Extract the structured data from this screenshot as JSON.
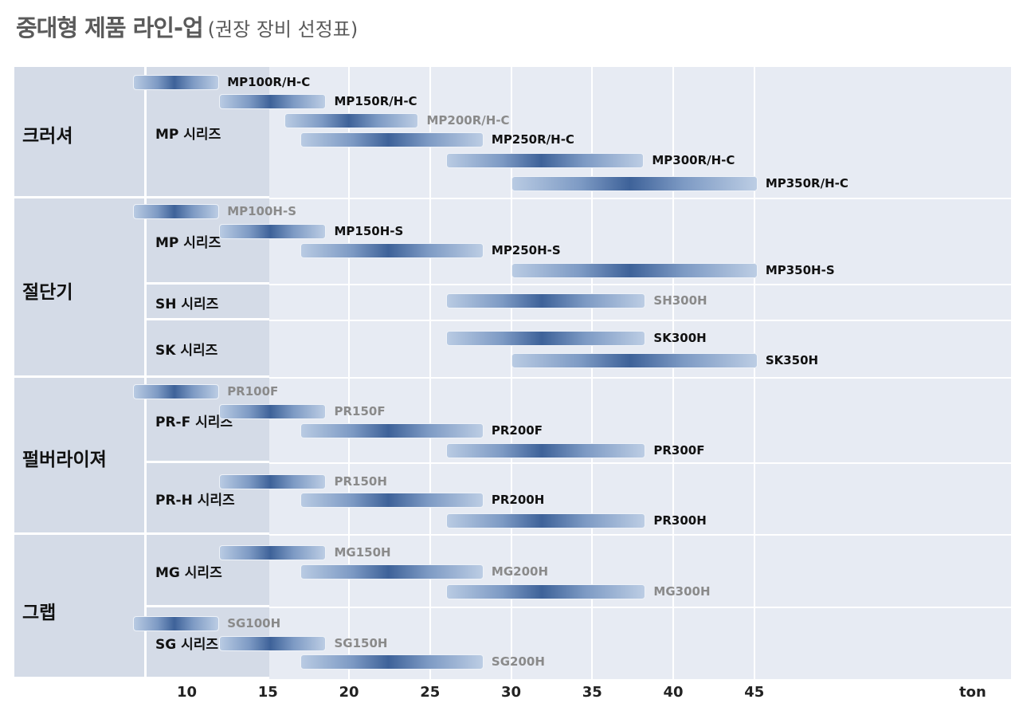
{
  "title": "중대형 제품 라인-업",
  "subtitle": "(권장 장비 선정표)",
  "unit": "ton",
  "chart_data": {
    "type": "range-bar",
    "x_ticks": [
      10,
      15,
      20,
      25,
      30,
      35,
      40,
      45
    ],
    "xlim": [
      5,
      51
    ],
    "x_unit": "ton",
    "grid": true,
    "categories": [
      {
        "name": "크러셔",
        "series": [
          {
            "name": "MP 시리즈",
            "models": [
              {
                "label": "MP100R/H-C",
                "min": 6.7,
                "max": 12,
                "highlight": true
              },
              {
                "label": "MP150R/H-C",
                "min": 12,
                "max": 18.6,
                "highlight": true
              },
              {
                "label": "MP200R/H-C",
                "min": 16,
                "max": 24.3,
                "highlight": false
              },
              {
                "label": "MP250R/H-C",
                "min": 17,
                "max": 28.3,
                "highlight": true
              },
              {
                "label": "MP300R/H-C",
                "min": 26,
                "max": 38.2,
                "highlight": true
              },
              {
                "label": "MP350R/H-C",
                "min": 30,
                "max": 45.2,
                "highlight": true
              }
            ]
          }
        ]
      },
      {
        "name": "절단기",
        "series": [
          {
            "name": "MP 시리즈",
            "models": [
              {
                "label": "MP100H-S",
                "min": 6.7,
                "max": 12,
                "highlight": false
              },
              {
                "label": "MP150H-S",
                "min": 12,
                "max": 18.6,
                "highlight": true
              },
              {
                "label": "MP250H-S",
                "min": 17,
                "max": 28.3,
                "highlight": true
              },
              {
                "label": "MP350H-S",
                "min": 30,
                "max": 45.2,
                "highlight": true
              }
            ]
          },
          {
            "name": "SH 시리즈",
            "models": [
              {
                "label": "SH300H",
                "min": 26,
                "max": 38.3,
                "highlight": false
              }
            ]
          },
          {
            "name": "SK 시리즈",
            "models": [
              {
                "label": "SK300H",
                "min": 26,
                "max": 38.3,
                "highlight": true
              },
              {
                "label": "SK350H",
                "min": 30,
                "max": 45.2,
                "highlight": true
              }
            ]
          }
        ]
      },
      {
        "name": "펄버라이져",
        "series": [
          {
            "name": "PR-F 시리즈",
            "models": [
              {
                "label": "PR100F",
                "min": 6.7,
                "max": 12,
                "highlight": false
              },
              {
                "label": "PR150F",
                "min": 12,
                "max": 18.6,
                "highlight": false
              },
              {
                "label": "PR200F",
                "min": 17,
                "max": 28.3,
                "highlight": true
              },
              {
                "label": "PR300F",
                "min": 26,
                "max": 38.3,
                "highlight": true
              }
            ]
          },
          {
            "name": "PR-H 시리즈",
            "models": [
              {
                "label": "PR150H",
                "min": 12,
                "max": 18.6,
                "highlight": false
              },
              {
                "label": "PR200H",
                "min": 17,
                "max": 28.3,
                "highlight": true
              },
              {
                "label": "PR300H",
                "min": 26,
                "max": 38.3,
                "highlight": true
              }
            ]
          }
        ]
      },
      {
        "name": "그랩",
        "series": [
          {
            "name": "MG 시리즈",
            "models": [
              {
                "label": "MG150H",
                "min": 12,
                "max": 18.6,
                "highlight": false
              },
              {
                "label": "MG200H",
                "min": 17,
                "max": 28.3,
                "highlight": false
              },
              {
                "label": "MG300H",
                "min": 26,
                "max": 38.3,
                "highlight": false
              }
            ]
          },
          {
            "name": "SG 시리즈",
            "models": [
              {
                "label": "SG100H",
                "min": 6.7,
                "max": 12,
                "highlight": false
              },
              {
                "label": "SG150H",
                "min": 12,
                "max": 18.6,
                "highlight": false
              },
              {
                "label": "SG200H",
                "min": 17,
                "max": 28.3,
                "highlight": false
              }
            ]
          }
        ]
      }
    ]
  }
}
